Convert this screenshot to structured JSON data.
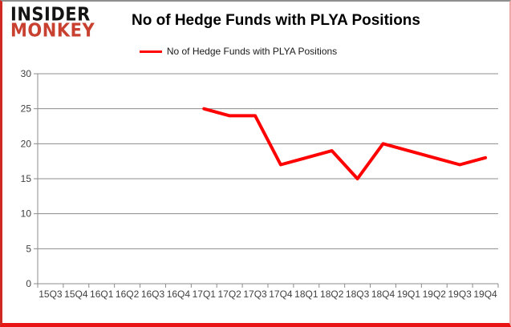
{
  "logo": {
    "line1": "INSIDER",
    "line2": "MONKEY",
    "line1_color": "#141414",
    "line2_color": "#c8402f"
  },
  "header": {
    "title": "No of Hedge Funds with PLYA Positions"
  },
  "legend": {
    "label": "No of Hedge Funds with PLYA Positions",
    "marker_color": "#ff0000"
  },
  "chart_data": {
    "type": "line",
    "title": "No of Hedge Funds with PLYA Positions",
    "categories": [
      "15Q3",
      "15Q4",
      "16Q1",
      "16Q2",
      "16Q3",
      "16Q4",
      "17Q1",
      "17Q2",
      "17Q3",
      "17Q4",
      "18Q1",
      "18Q2",
      "18Q3",
      "18Q4",
      "19Q1",
      "19Q2",
      "19Q3",
      "19Q4"
    ],
    "series": [
      {
        "name": "No of Hedge Funds with PLYA Positions",
        "color": "#ff0000",
        "values": [
          null,
          null,
          null,
          null,
          null,
          null,
          25,
          24,
          24,
          17,
          18,
          19,
          15,
          20,
          19,
          18,
          17,
          18
        ]
      }
    ],
    "xlabel": "",
    "ylabel": "",
    "ylim": [
      0,
      30
    ],
    "ytick_step": 5,
    "grid": "horizontal",
    "legend_position": "top-center",
    "colors": {
      "gridline": "#8c8c8c",
      "axis": "#8c8c8c",
      "tick_label": "#404040",
      "background": "#ffffff"
    }
  }
}
